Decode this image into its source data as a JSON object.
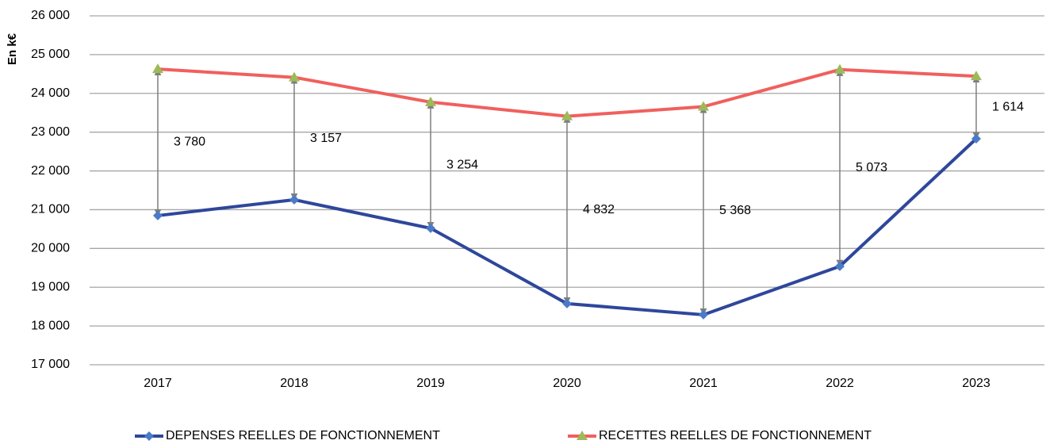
{
  "chart_data": {
    "type": "line",
    "y_label": "En k€",
    "categories": [
      "2017",
      "2018",
      "2019",
      "2020",
      "2021",
      "2022",
      "2023"
    ],
    "series": [
      {
        "name": "DEPENSES REELLES DE FONCTIONNEMENT",
        "color": "#2e479b",
        "marker": "diamond",
        "marker_color": "#4a7bc8",
        "values": [
          20847,
          21256,
          20520,
          18577,
          18290,
          19540,
          22830
        ]
      },
      {
        "name": "RECETTES REELLES DE FONCTIONNEMENT",
        "color": "#f0605d",
        "marker": "triangle",
        "marker_color": "#9bbb59",
        "values": [
          24627,
          24413,
          23774,
          23409,
          23658,
          24613,
          24444
        ]
      }
    ],
    "differences": {
      "color": "#7f7f7f",
      "values": [
        3780,
        3157,
        3254,
        4832,
        5368,
        5073,
        1614
      ],
      "value_labels": [
        "3 780",
        "3 157",
        "3 254",
        "4 832",
        "5 368",
        "5 073",
        "1 614"
      ]
    },
    "ylim": [
      17000,
      26000
    ],
    "yticks": [
      {
        "value": 17000,
        "label": "17 000"
      },
      {
        "value": 18000,
        "label": "18 000"
      },
      {
        "value": 19000,
        "label": "19 000"
      },
      {
        "value": 20000,
        "label": "20 000"
      },
      {
        "value": 21000,
        "label": "21 000"
      },
      {
        "value": 22000,
        "label": "22 000"
      },
      {
        "value": 23000,
        "label": "23 000"
      },
      {
        "value": 24000,
        "label": "24 000"
      },
      {
        "value": 25000,
        "label": "25 000"
      },
      {
        "value": 26000,
        "label": "26 000"
      }
    ],
    "grid": true,
    "legend": "bottom"
  }
}
